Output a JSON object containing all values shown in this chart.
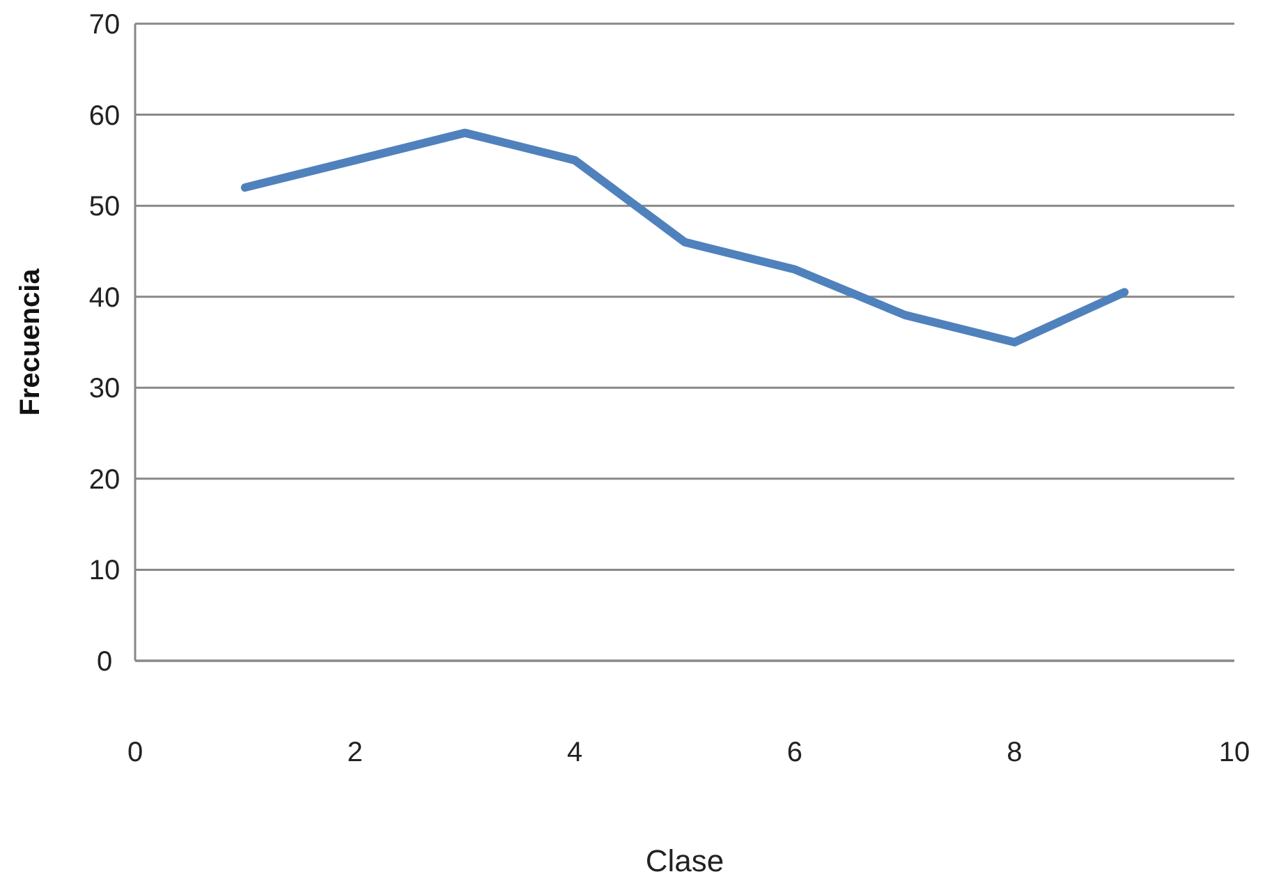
{
  "chart_data": {
    "type": "line",
    "xlabel": "Clase",
    "ylabel": "Frecuencia",
    "x": [
      1,
      2,
      3,
      4,
      5,
      6,
      7,
      8,
      9
    ],
    "series": [
      {
        "color": "#4f81bd",
        "values": [
          52,
          55,
          58,
          55,
          46,
          43,
          38,
          35,
          40.5
        ]
      }
    ],
    "xlim": [
      0,
      10
    ],
    "xticks": [
      0,
      2,
      4,
      6,
      8,
      10
    ],
    "ylim": [
      0,
      70
    ],
    "yticks": [
      0,
      10,
      20,
      30,
      40,
      50,
      60,
      70
    ],
    "grid": "y",
    "marker": "none",
    "line_style": "solid"
  }
}
